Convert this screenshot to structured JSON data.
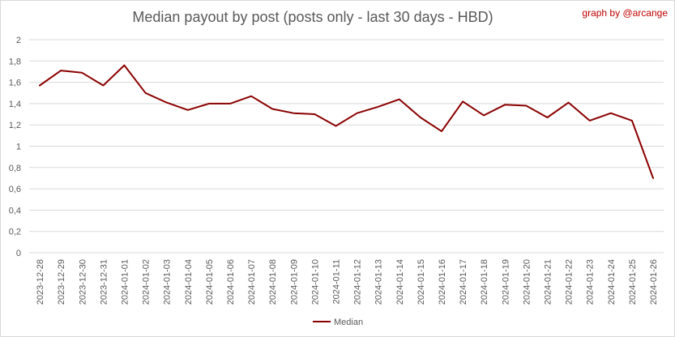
{
  "chart_title": "Median payout by post (posts only - last 30 days - HBD)",
  "credit": "graph by @arcange",
  "colors": {
    "series": "#8b0000",
    "grid": "#d9d9d9",
    "text": "#595959",
    "credit": "#c00000"
  },
  "chart_data": {
    "type": "line",
    "title": "Median payout by post (posts only - last 30 days - HBD)",
    "xlabel": "",
    "ylabel": "",
    "ylim": [
      0,
      2
    ],
    "yticks": [
      "0",
      "0,2",
      "0,4",
      "0,6",
      "0,8",
      "1",
      "1,2",
      "1,4",
      "1,6",
      "1,8",
      "2"
    ],
    "grid": "horizontal",
    "legend_position": "bottom",
    "categories": [
      "2023-12-28",
      "2023-12-29",
      "2023-12-30",
      "2023-12-31",
      "2024-01-01",
      "2024-01-02",
      "2024-01-03",
      "2024-01-04",
      "2024-01-05",
      "2024-01-06",
      "2024-01-07",
      "2024-01-08",
      "2024-01-09",
      "2024-01-10",
      "2024-01-11",
      "2024-01-12",
      "2024-01-13",
      "2024-01-14",
      "2024-01-15",
      "2024-01-16",
      "2024-01-17",
      "2024-01-18",
      "2024-01-19",
      "2024-01-20",
      "2024-01-21",
      "2024-01-22",
      "2024-01-23",
      "2024-01-24",
      "2024-01-25",
      "2024-01-26"
    ],
    "series": [
      {
        "name": "Median",
        "values": [
          1.57,
          1.71,
          1.69,
          1.57,
          1.76,
          1.5,
          1.41,
          1.34,
          1.4,
          1.4,
          1.47,
          1.35,
          1.31,
          1.3,
          1.19,
          1.31,
          1.37,
          1.44,
          1.27,
          1.14,
          1.42,
          1.29,
          1.39,
          1.38,
          1.27,
          1.41,
          1.24,
          1.31,
          1.24,
          0.7
        ]
      }
    ]
  }
}
